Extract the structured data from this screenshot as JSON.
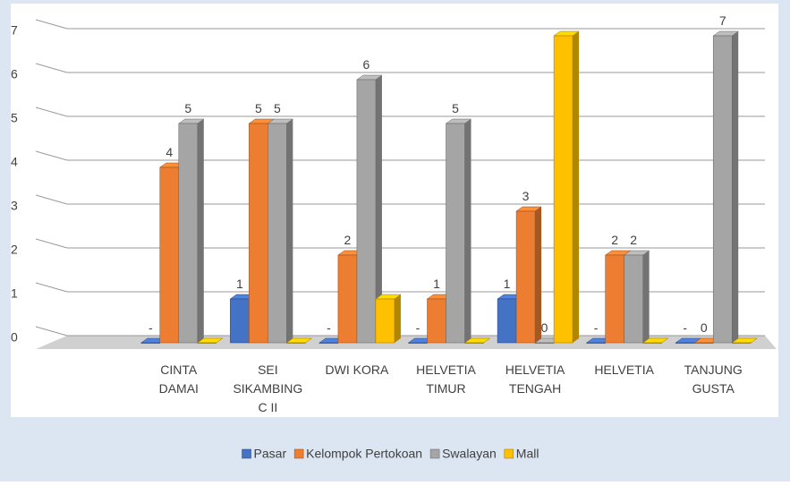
{
  "chart_data": {
    "type": "bar",
    "categories": [
      "CINTA DAMAI",
      "SEI SIKAMBING C II",
      "DWI KORA",
      "HELVETIA TIMUR",
      "HELVETIA TENGAH",
      "HELVETIA",
      "TANJUNG GUSTA"
    ],
    "series": [
      {
        "name": "Pasar",
        "color": "#4472c4",
        "values": [
          0,
          1,
          0,
          0,
          1,
          0,
          0
        ],
        "value_labels": [
          "-",
          "1",
          "-",
          "-",
          "1",
          "-",
          "-"
        ]
      },
      {
        "name": "Kelompok Pertokoan",
        "color": "#ed7d31",
        "values": [
          4,
          5,
          2,
          1,
          3,
          2,
          0
        ],
        "data_labels": true
      },
      {
        "name": "Swalayan",
        "color": "#a5a5a5",
        "values": [
          5,
          5,
          6,
          5,
          0,
          2,
          7
        ],
        "data_labels": true
      },
      {
        "name": "Mall",
        "color": "#ffc000",
        "values": [
          0,
          0,
          1,
          0,
          7,
          0,
          0
        ],
        "data_labels": false
      }
    ],
    "ylim": [
      0,
      7
    ],
    "yticks": [
      0,
      1,
      2,
      3,
      4,
      5,
      6,
      7
    ],
    "grid": true,
    "legend": "bottom"
  }
}
